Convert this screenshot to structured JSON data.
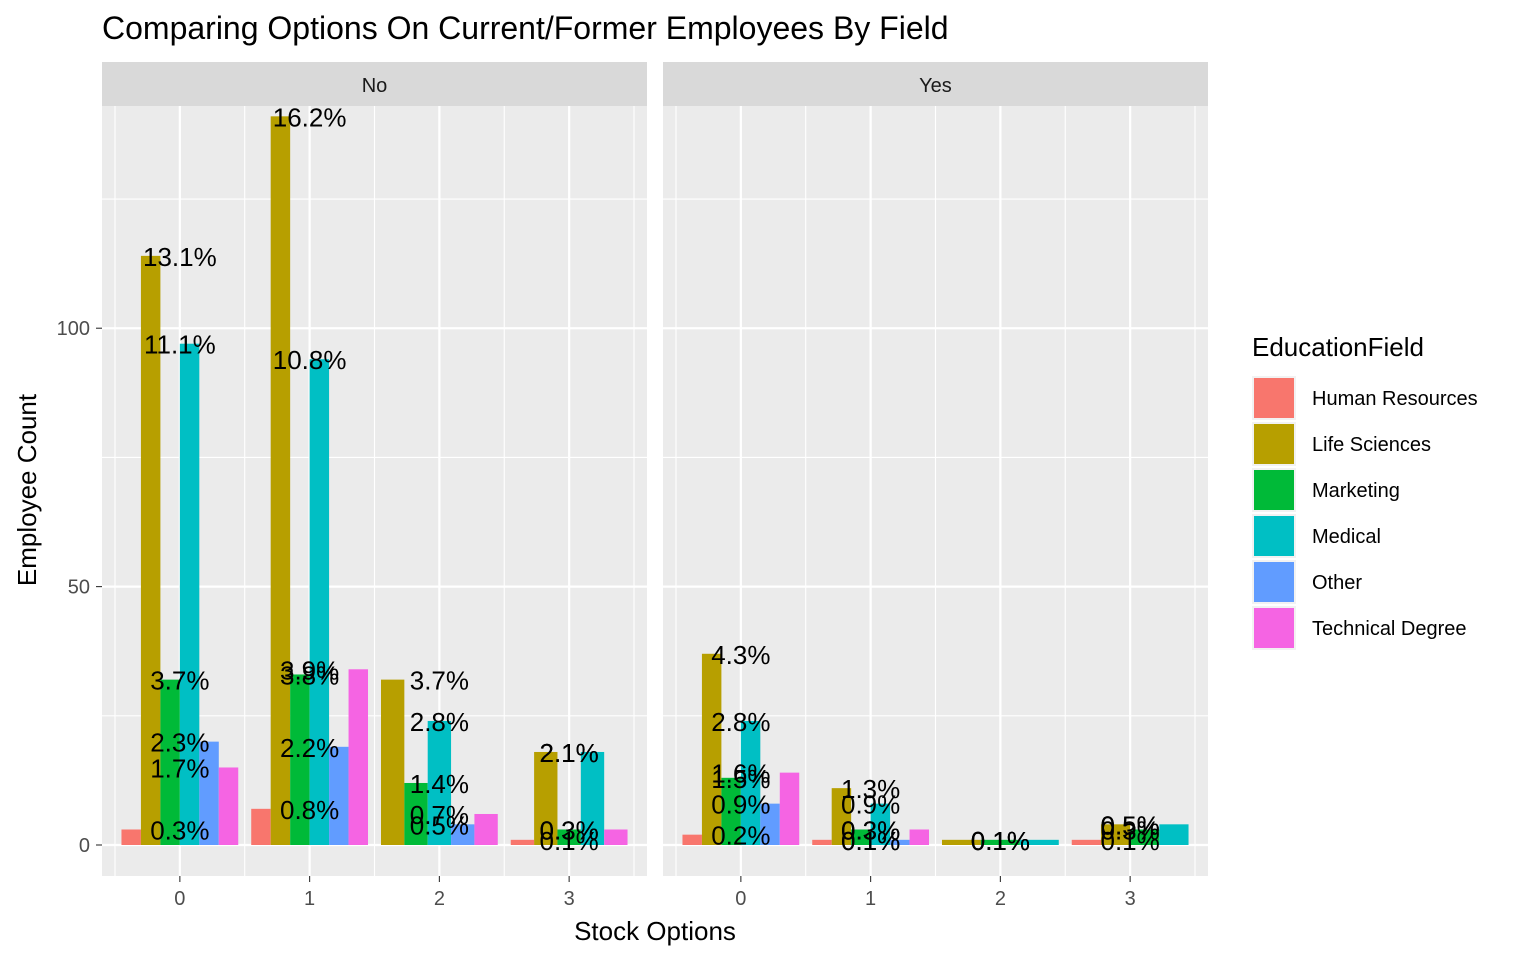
{
  "chart_data": {
    "type": "bar",
    "title": "Comparing Options On Current/Former Employees By Field",
    "xlabel": "Stock Options",
    "ylabel": "Employee Count",
    "ylim": [
      -6,
      143
    ],
    "y_ticks": [
      0,
      50,
      100
    ],
    "grid": true,
    "legend_position": "right",
    "legend_title": "EducationField",
    "categories": [
      "0",
      "1",
      "2",
      "3"
    ],
    "series": [
      {
        "name": "Human Resources",
        "color": "#F8766D"
      },
      {
        "name": "Life Sciences",
        "color": "#B79F00"
      },
      {
        "name": "Marketing",
        "color": "#00BA38"
      },
      {
        "name": "Medical",
        "color": "#00BFC4"
      },
      {
        "name": "Other",
        "color": "#619CFF"
      },
      {
        "name": "Technical Degree",
        "color": "#F564E3"
      }
    ],
    "panels": [
      {
        "strip": "No",
        "bars": [
          [
            {
              "series": "Human Resources",
              "value": 3,
              "label": "0.3%"
            },
            {
              "series": "Life Sciences",
              "value": 114,
              "label": "13.1%"
            },
            {
              "series": "Marketing",
              "value": 32,
              "label": "3.7%"
            },
            {
              "series": "Medical",
              "value": 97,
              "label": "11.1%"
            },
            {
              "series": "Other",
              "value": 20,
              "label": "2.3%"
            },
            {
              "series": "Technical Degree",
              "value": 15,
              "label": "1.7%"
            }
          ],
          [
            {
              "series": "Human Resources",
              "value": 7,
              "label": "0.8%"
            },
            {
              "series": "Life Sciences",
              "value": 141,
              "label": "16.2%"
            },
            {
              "series": "Marketing",
              "value": 33,
              "label": "3.8%"
            },
            {
              "series": "Medical",
              "value": 94,
              "label": "10.8%"
            },
            {
              "series": "Other",
              "value": 19,
              "label": "2.2%"
            },
            {
              "series": "Technical Degree",
              "value": 34,
              "label": "3.9%"
            }
          ],
          [
            {
              "series": "Life Sciences",
              "value": 32,
              "label": "3.7%"
            },
            {
              "series": "Marketing",
              "value": 12,
              "label": "1.4%"
            },
            {
              "series": "Medical",
              "value": 24,
              "label": "2.8%"
            },
            {
              "series": "Other",
              "value": 4,
              "label": "0.5%"
            },
            {
              "series": "Technical Degree",
              "value": 6,
              "label": "0.7%"
            }
          ],
          [
            {
              "series": "Human Resources",
              "value": 1,
              "label": "0.1%"
            },
            {
              "series": "Life Sciences",
              "value": 18,
              "label": "2.1%"
            },
            {
              "series": "Marketing",
              "value": 3,
              "label": "0.3%"
            },
            {
              "series": "Medical",
              "value": 18,
              "label": "2.1%"
            },
            {
              "series": "Technical Degree",
              "value": 3,
              "label": "0.3%"
            }
          ]
        ]
      },
      {
        "strip": "Yes",
        "bars": [
          [
            {
              "series": "Human Resources",
              "value": 2,
              "label": "0.2%"
            },
            {
              "series": "Life Sciences",
              "value": 37,
              "label": "4.3%"
            },
            {
              "series": "Marketing",
              "value": 13,
              "label": "1.5%"
            },
            {
              "series": "Medical",
              "value": 24,
              "label": "2.8%"
            },
            {
              "series": "Other",
              "value": 8,
              "label": "0.9%"
            },
            {
              "series": "Technical Degree",
              "value": 14,
              "label": "1.6%"
            }
          ],
          [
            {
              "series": "Human Resources",
              "value": 1,
              "label": "0.1%"
            },
            {
              "series": "Life Sciences",
              "value": 11,
              "label": "1.3%"
            },
            {
              "series": "Marketing",
              "value": 3,
              "label": "0.3%"
            },
            {
              "series": "Medical",
              "value": 8,
              "label": "0.9%"
            },
            {
              "series": "Other",
              "value": 1,
              "label": "0.1%"
            },
            {
              "series": "Technical Degree",
              "value": 3,
              "label": "0.3%"
            }
          ],
          [
            {
              "series": "Life Sciences",
              "value": 1,
              "label": "0.1%"
            },
            {
              "series": "Marketing",
              "value": 1,
              "label": "0.1%"
            },
            {
              "series": "Medical",
              "value": 1,
              "label": "0.1%"
            }
          ],
          [
            {
              "series": "Human Resources",
              "value": 1,
              "label": "0.1%"
            },
            {
              "series": "Life Sciences",
              "value": 4,
              "label": "0.5%"
            },
            {
              "series": "Marketing",
              "value": 3,
              "label": "0.3%"
            },
            {
              "series": "Medical",
              "value": 4,
              "label": "0.5%"
            }
          ]
        ]
      }
    ]
  }
}
